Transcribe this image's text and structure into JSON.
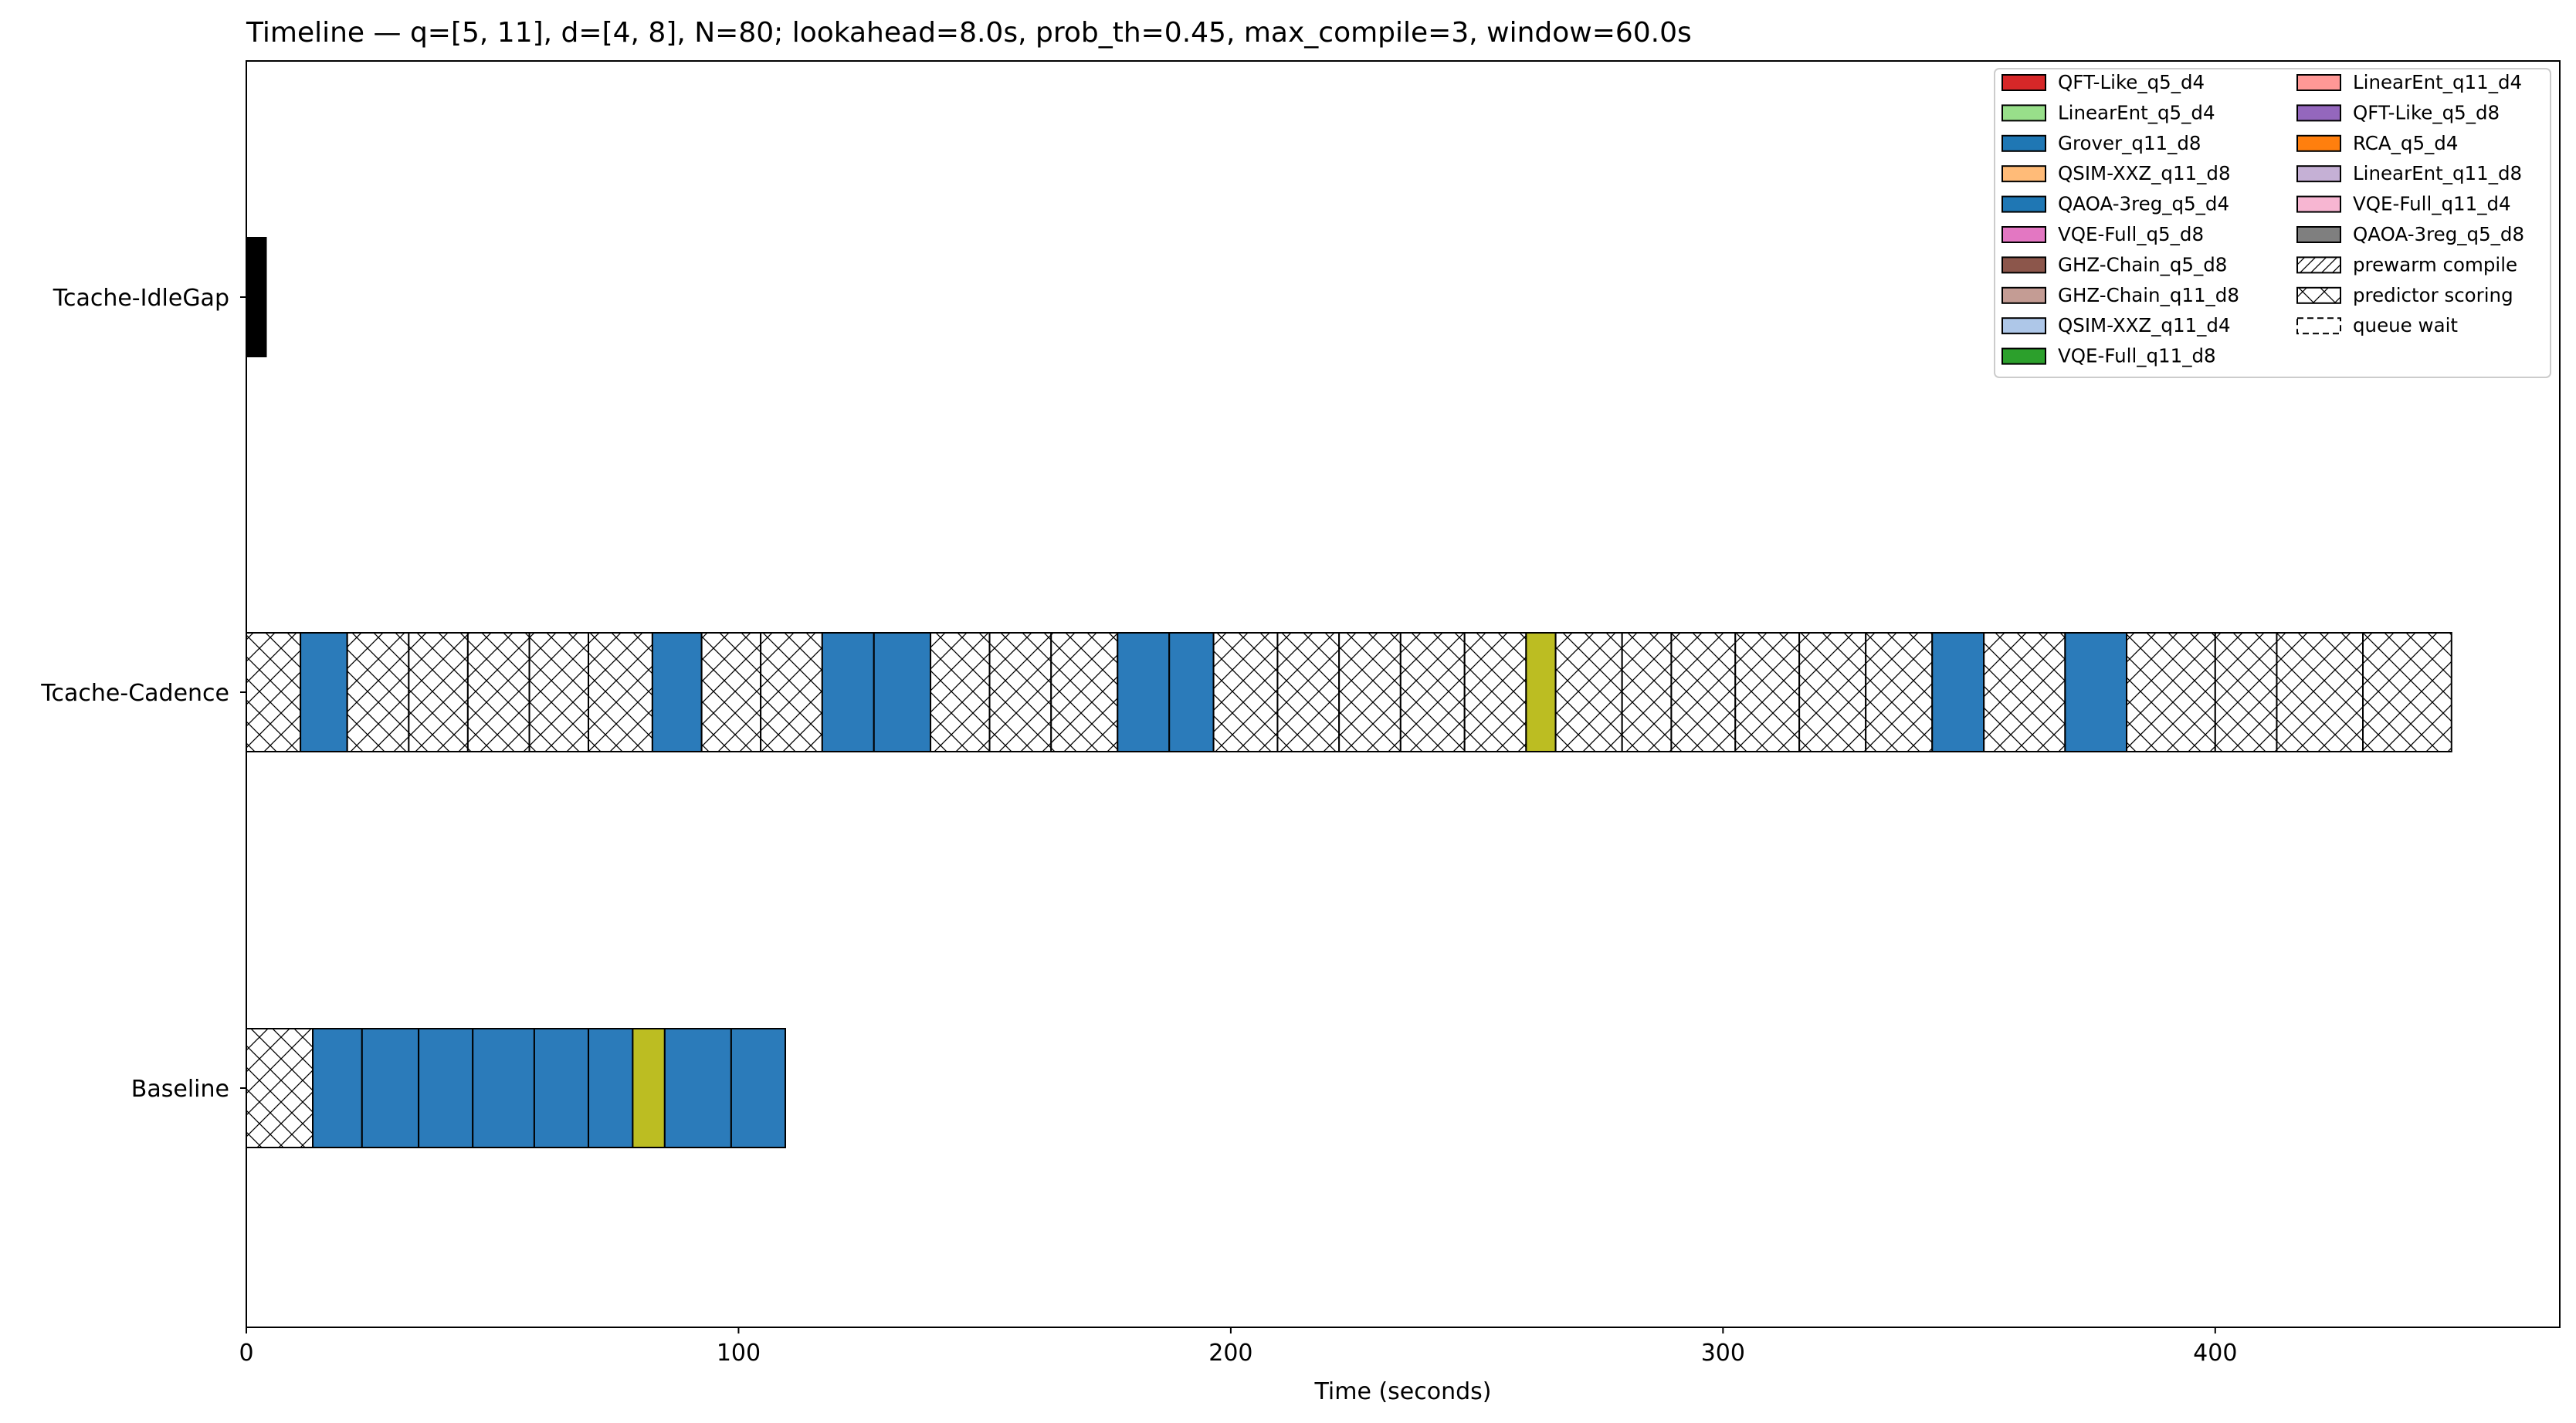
{
  "chart_data": {
    "type": "bar",
    "orientation": "horizontal",
    "title": "Timeline — q=[5, 11], d=[4, 8], N=80; lookahead=8.0s, prob_th=0.45, max_compile=3, window=60.0s",
    "xlabel": "Time (seconds)",
    "ylabel": "",
    "xlim": [
      0,
      470
    ],
    "x_ticks": [
      0,
      100,
      200,
      300,
      400
    ],
    "grid": false,
    "legend_position": "top-right",
    "categories": [
      "Tcache-IdleGap",
      "Tcache-Cadence",
      "Baseline"
    ],
    "legend": [
      {
        "label": "QFT-Like_q5_d4",
        "color": "#d62728",
        "pattern": "solid"
      },
      {
        "label": "LinearEnt_q5_d4",
        "color": "#98df8a",
        "pattern": "solid"
      },
      {
        "label": "Grover_q11_d8",
        "color": "#1f77b4",
        "pattern": "solid"
      },
      {
        "label": "QSIM-XXZ_q11_d8",
        "color": "#ffbb78",
        "pattern": "solid"
      },
      {
        "label": "QAOA-3reg_q5_d4",
        "color": "#1f77b4",
        "pattern": "solid"
      },
      {
        "label": "VQE-Full_q5_d8",
        "color": "#e377c2",
        "pattern": "solid"
      },
      {
        "label": "GHZ-Chain_q5_d8",
        "color": "#8c564b",
        "pattern": "solid"
      },
      {
        "label": "GHZ-Chain_q11_d8",
        "color": "#c49c94",
        "pattern": "solid"
      },
      {
        "label": "QSIM-XXZ_q11_d4",
        "color": "#aec7e8",
        "pattern": "solid"
      },
      {
        "label": "VQE-Full_q11_d8",
        "color": "#2ca02c",
        "pattern": "solid"
      },
      {
        "label": "LinearEnt_q11_d4",
        "color": "#ff9896",
        "pattern": "solid"
      },
      {
        "label": "QFT-Like_q5_d8",
        "color": "#9467bd",
        "pattern": "solid"
      },
      {
        "label": "RCA_q5_d4",
        "color": "#ff7f0e",
        "pattern": "solid"
      },
      {
        "label": "LinearEnt_q11_d8",
        "color": "#c5b0d5",
        "pattern": "solid"
      },
      {
        "label": "VQE-Full_q11_d4",
        "color": "#f7b6d2",
        "pattern": "solid"
      },
      {
        "label": "QAOA-3reg_q5_d8",
        "color": "#7f7f7f",
        "pattern": "solid"
      },
      {
        "label": "prewarm compile",
        "color": "#ffffff",
        "pattern": "diag"
      },
      {
        "label": "predictor scoring",
        "color": "#ffffff",
        "pattern": "cross"
      },
      {
        "label": "queue wait",
        "color": "#ffffff",
        "pattern": "dashed"
      }
    ],
    "series": [
      {
        "category": "Tcache-IdleGap",
        "segments": [
          {
            "start": 0,
            "end": 4,
            "kind": "solid",
            "color": "#000000"
          }
        ]
      },
      {
        "category": "Tcache-Cadence",
        "segments": [
          {
            "start": 0,
            "end": 11,
            "kind": "cross",
            "color": "#ffffff"
          },
          {
            "start": 11,
            "end": 20.5,
            "kind": "solid",
            "color": "#2b7bba"
          },
          {
            "start": 20.5,
            "end": 33,
            "kind": "cross",
            "color": "#ffffff"
          },
          {
            "start": 33,
            "end": 45,
            "kind": "cross",
            "color": "#ffffff"
          },
          {
            "start": 45,
            "end": 57.5,
            "kind": "cross",
            "color": "#ffffff"
          },
          {
            "start": 57.5,
            "end": 69.5,
            "kind": "cross",
            "color": "#ffffff"
          },
          {
            "start": 69.5,
            "end": 82.5,
            "kind": "cross",
            "color": "#ffffff"
          },
          {
            "start": 82.5,
            "end": 92.5,
            "kind": "solid",
            "color": "#2b7bba"
          },
          {
            "start": 92.5,
            "end": 104.5,
            "kind": "cross",
            "color": "#ffffff"
          },
          {
            "start": 104.5,
            "end": 117,
            "kind": "cross",
            "color": "#ffffff"
          },
          {
            "start": 117,
            "end": 127.5,
            "kind": "solid",
            "color": "#2b7bba"
          },
          {
            "start": 127.5,
            "end": 139,
            "kind": "solid",
            "color": "#2b7bba"
          },
          {
            "start": 139,
            "end": 151,
            "kind": "cross",
            "color": "#ffffff"
          },
          {
            "start": 151,
            "end": 163.5,
            "kind": "cross",
            "color": "#ffffff"
          },
          {
            "start": 163.5,
            "end": 177,
            "kind": "cross",
            "color": "#ffffff"
          },
          {
            "start": 177,
            "end": 187.5,
            "kind": "solid",
            "color": "#2b7bba"
          },
          {
            "start": 187.5,
            "end": 196.5,
            "kind": "solid",
            "color": "#2b7bba"
          },
          {
            "start": 196.5,
            "end": 209.5,
            "kind": "cross",
            "color": "#ffffff"
          },
          {
            "start": 209.5,
            "end": 222,
            "kind": "cross",
            "color": "#ffffff"
          },
          {
            "start": 222,
            "end": 234.5,
            "kind": "cross",
            "color": "#ffffff"
          },
          {
            "start": 234.5,
            "end": 247.5,
            "kind": "cross",
            "color": "#ffffff"
          },
          {
            "start": 247.5,
            "end": 260,
            "kind": "cross",
            "color": "#ffffff"
          },
          {
            "start": 260,
            "end": 266,
            "kind": "solid",
            "color": "#bcbd22"
          },
          {
            "start": 266,
            "end": 279.5,
            "kind": "cross",
            "color": "#ffffff"
          },
          {
            "start": 279.5,
            "end": 289.5,
            "kind": "cross",
            "color": "#ffffff"
          },
          {
            "start": 289.5,
            "end": 302.5,
            "kind": "cross",
            "color": "#ffffff"
          },
          {
            "start": 302.5,
            "end": 315.5,
            "kind": "cross",
            "color": "#ffffff"
          },
          {
            "start": 315.5,
            "end": 329,
            "kind": "cross",
            "color": "#ffffff"
          },
          {
            "start": 329,
            "end": 342.5,
            "kind": "cross",
            "color": "#ffffff"
          },
          {
            "start": 342.5,
            "end": 353,
            "kind": "solid",
            "color": "#2b7bba"
          },
          {
            "start": 353,
            "end": 369.5,
            "kind": "cross",
            "color": "#ffffff"
          },
          {
            "start": 369.5,
            "end": 382,
            "kind": "solid",
            "color": "#2b7bba"
          },
          {
            "start": 382,
            "end": 400,
            "kind": "cross",
            "color": "#ffffff"
          },
          {
            "start": 400,
            "end": 412.5,
            "kind": "cross",
            "color": "#ffffff"
          },
          {
            "start": 412.5,
            "end": 430,
            "kind": "cross",
            "color": "#ffffff"
          },
          {
            "start": 430,
            "end": 448,
            "kind": "cross",
            "color": "#ffffff"
          }
        ]
      },
      {
        "category": "Baseline",
        "segments": [
          {
            "start": 0,
            "end": 13.5,
            "kind": "cross",
            "color": "#ffffff"
          },
          {
            "start": 13.5,
            "end": 23.5,
            "kind": "solid",
            "color": "#2b7bba"
          },
          {
            "start": 23.5,
            "end": 35,
            "kind": "solid",
            "color": "#2b7bba"
          },
          {
            "start": 35,
            "end": 46,
            "kind": "solid",
            "color": "#2b7bba"
          },
          {
            "start": 46,
            "end": 58.5,
            "kind": "solid",
            "color": "#2b7bba"
          },
          {
            "start": 58.5,
            "end": 69.5,
            "kind": "solid",
            "color": "#2b7bba"
          },
          {
            "start": 69.5,
            "end": 78.5,
            "kind": "solid",
            "color": "#2b7bba"
          },
          {
            "start": 78.5,
            "end": 85,
            "kind": "solid",
            "color": "#bcbd22"
          },
          {
            "start": 85,
            "end": 98.5,
            "kind": "solid",
            "color": "#2b7bba"
          },
          {
            "start": 98.5,
            "end": 109.5,
            "kind": "solid",
            "color": "#2b7bba"
          }
        ]
      }
    ]
  }
}
